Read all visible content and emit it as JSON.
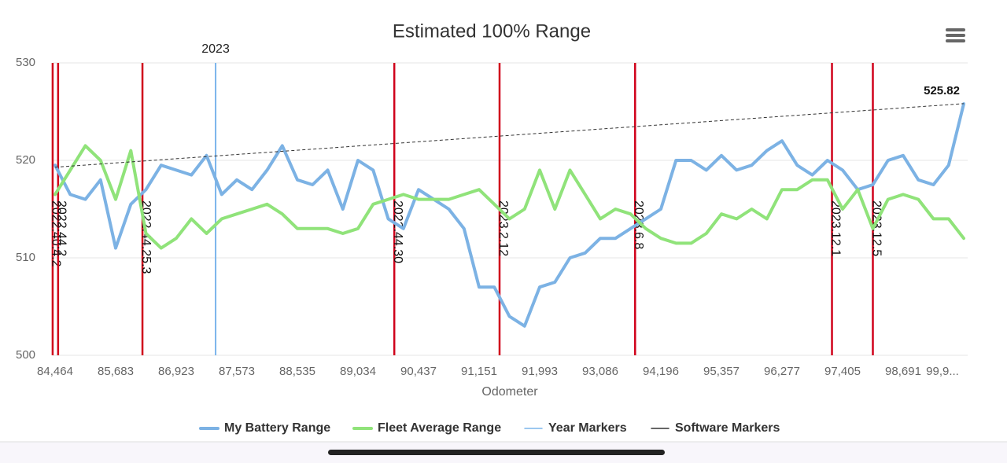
{
  "chart_data": {
    "type": "line",
    "title": "Estimated 100% Range",
    "x_label": "Odometer",
    "categories": [
      "84,464",
      null,
      null,
      null,
      "85,683",
      null,
      null,
      null,
      "86,923",
      null,
      null,
      null,
      "87,573",
      null,
      null,
      null,
      "88,535",
      null,
      null,
      null,
      "89,034",
      null,
      null,
      null,
      "90,437",
      null,
      null,
      null,
      "91,151",
      null,
      null,
      null,
      "91,993",
      null,
      null,
      null,
      "93,086",
      null,
      null,
      null,
      "94,196",
      null,
      null,
      null,
      "95,357",
      null,
      null,
      null,
      "96,277",
      null,
      null,
      null,
      "97,405",
      null,
      null,
      null,
      "98,691",
      null,
      null,
      null,
      "99,9..."
    ],
    "series": [
      {
        "name": "My Battery Range",
        "color": "#7cb2e4",
        "values": [
          519.5,
          516.5,
          516,
          518,
          511,
          515.5,
          517,
          519.5,
          519,
          518.5,
          520.5,
          516.5,
          518,
          517,
          519,
          521.5,
          518,
          517.5,
          519,
          515,
          520,
          519,
          514,
          513,
          517,
          516,
          515,
          513,
          507,
          507,
          504,
          503,
          507,
          507.5,
          510,
          510.5,
          512,
          512,
          513,
          514,
          515,
          520,
          520,
          519,
          520.5,
          519,
          519.5,
          521,
          522,
          519.5,
          518.5,
          520,
          519,
          517,
          517.5,
          520,
          520.5,
          518,
          517.5,
          519.5,
          525.8
        ]
      },
      {
        "name": "Fleet Average Range",
        "color": "#90e37a",
        "values": [
          516.5,
          519,
          521.5,
          520,
          516,
          521,
          512.5,
          511,
          512,
          514,
          512.5,
          514,
          514.5,
          515,
          515.5,
          514.5,
          513,
          513,
          513,
          512.5,
          513,
          515.5,
          516,
          516.5,
          516,
          516,
          516,
          516.5,
          517,
          515.5,
          514,
          515,
          519,
          515,
          519,
          516.5,
          514,
          515,
          514.5,
          513,
          512,
          511.5,
          511.5,
          512.5,
          514.5,
          514,
          515,
          514,
          517,
          517,
          518,
          518,
          515,
          517,
          513,
          516,
          516.5,
          516,
          514,
          514,
          512
        ]
      }
    ],
    "year_markers": {
      "name": "Year Markers",
      "color": "#7cb5ec",
      "items": [
        {
          "label": "2023",
          "position": 10.6
        }
      ]
    },
    "software_markers": {
      "name": "Software Markers",
      "color": "#d0021b",
      "legend_color": "#333333",
      "items": [
        {
          "label": "2022.40.4.2",
          "position": -0.16
        },
        {
          "label": "2022.44.2",
          "position": 0.2
        },
        {
          "label": "2022.44.25.3",
          "position": 5.77
        },
        {
          "label": "2022.44.30",
          "position": 22.4
        },
        {
          "label": "2023.2.12",
          "position": 29.35
        },
        {
          "label": "2023.6.8",
          "position": 38.3
        },
        {
          "label": "2023.12.1",
          "position": 51.3
        },
        {
          "label": "2023.12.5",
          "position": 54.0
        }
      ]
    },
    "trend": {
      "start": 519.3,
      "end": 525.82
    },
    "ylim": [
      500,
      530
    ],
    "yticks": [
      500,
      510,
      520,
      530
    ],
    "grid": true
  }
}
